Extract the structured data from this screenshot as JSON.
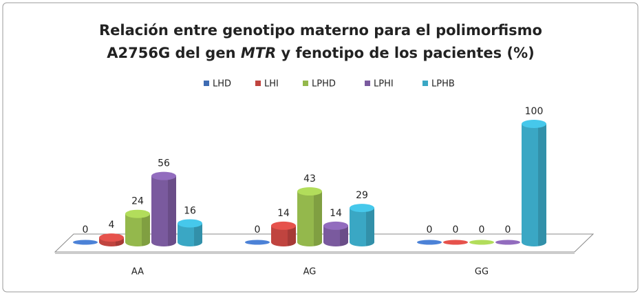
{
  "chart_data": {
    "type": "bar3d",
    "title_lines": [
      [
        {
          "text": "Relación entre genotipo materno para el polimorfismo",
          "italic": false
        }
      ],
      [
        {
          "text": "A2756G del gen ",
          "italic": false
        },
        {
          "text": "MTR",
          "italic": true
        },
        {
          "text": " y fenotipo de los pacientes (%)",
          "italic": false
        }
      ]
    ],
    "categories": [
      "AA",
      "AG",
      "GG"
    ],
    "series": [
      {
        "name": "LHD",
        "color": "#3f6cb3",
        "values": [
          0,
          0,
          0
        ]
      },
      {
        "name": "LHI",
        "color": "#c0443f",
        "values": [
          4,
          14,
          0
        ]
      },
      {
        "name": "LPHD",
        "color": "#94b84c",
        "values": [
          24,
          43,
          0
        ]
      },
      {
        "name": "LPHI",
        "color": "#7a5a9e",
        "values": [
          56,
          14,
          0
        ]
      },
      {
        "name": "LPHB",
        "color": "#3aa7c4",
        "values": [
          16,
          29,
          100
        ]
      }
    ],
    "legend": "top"
  }
}
